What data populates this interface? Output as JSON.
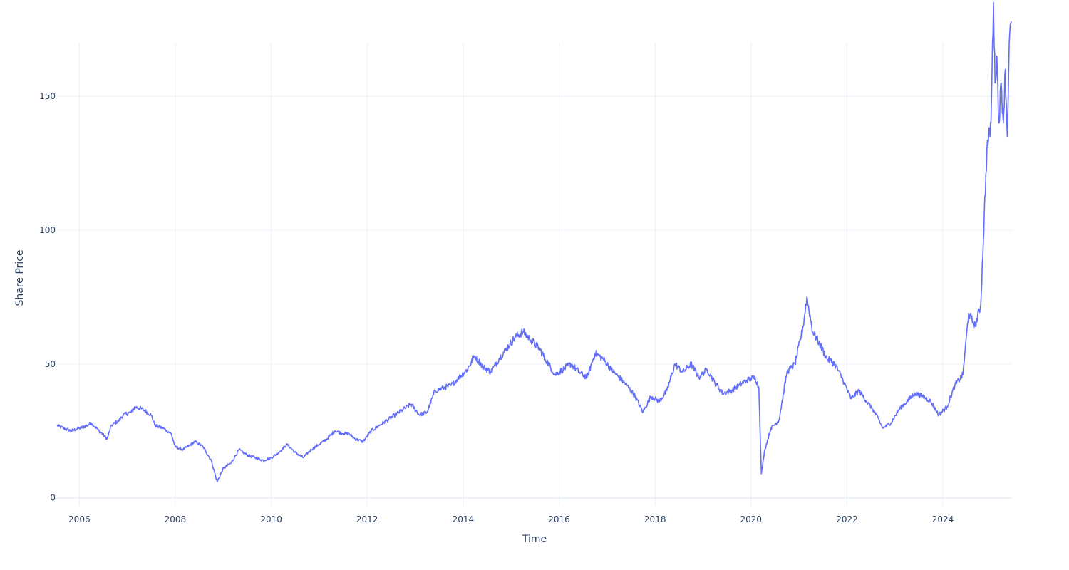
{
  "chart_data": {
    "type": "line",
    "xlabel": "Time",
    "ylabel": "Share Price",
    "xlim": [
      "2005-07-15",
      "2025-06-10"
    ],
    "ylim": [
      -3,
      170
    ],
    "x_ticks": [
      "2006",
      "2008",
      "2010",
      "2012",
      "2014",
      "2016",
      "2018",
      "2020",
      "2022",
      "2024"
    ],
    "y_ticks": [
      0,
      50,
      100,
      150
    ],
    "grid": true,
    "legend": "none",
    "line_color": "#636efa",
    "series": [
      {
        "x": [
          "2005-07-15",
          "2005-09-01",
          "2005-11-01",
          "2006-01-01",
          "2006-03-01",
          "2006-04-01",
          "2006-06-01",
          "2006-08-01",
          "2006-09-01",
          "2006-11-01",
          "2006-12-01",
          "2007-02-01",
          "2007-03-01",
          "2007-05-01",
          "2007-07-01",
          "2007-08-01",
          "2007-10-01",
          "2007-12-01",
          "2008-01-01",
          "2008-03-01",
          "2008-06-01",
          "2008-08-01",
          "2008-10-01",
          "2008-11-15",
          "2009-01-01",
          "2009-03-01",
          "2009-05-01",
          "2009-07-01",
          "2009-09-01",
          "2009-11-01",
          "2010-01-01",
          "2010-03-01",
          "2010-05-01",
          "2010-07-01",
          "2010-09-01",
          "2010-11-01",
          "2011-01-01",
          "2011-03-01",
          "2011-05-01",
          "2011-07-01",
          "2011-08-15",
          "2011-10-01",
          "2011-12-01",
          "2012-02-01",
          "2012-04-01",
          "2012-06-01",
          "2012-08-01",
          "2012-10-01",
          "2012-12-01",
          "2013-02-01",
          "2013-04-01",
          "2013-06-01",
          "2013-08-01",
          "2013-10-01",
          "2013-12-01",
          "2014-02-01",
          "2014-04-01",
          "2014-06-01",
          "2014-08-01",
          "2014-10-01",
          "2014-12-01",
          "2015-02-01",
          "2015-04-01",
          "2015-06-01",
          "2015-08-01",
          "2015-10-01",
          "2015-12-01",
          "2016-02-01",
          "2016-04-01",
          "2016-06-01",
          "2016-08-01",
          "2016-10-01",
          "2016-12-01",
          "2017-02-01",
          "2017-04-01",
          "2017-06-01",
          "2017-08-01",
          "2017-10-01",
          "2017-12-01",
          "2018-02-01",
          "2018-04-01",
          "2018-06-01",
          "2018-08-01",
          "2018-10-01",
          "2018-12-01",
          "2019-02-01",
          "2019-04-01",
          "2019-06-01",
          "2019-08-01",
          "2019-10-01",
          "2019-12-01",
          "2020-02-01",
          "2020-03-01",
          "2020-03-20",
          "2020-04-15",
          "2020-06-01",
          "2020-08-01",
          "2020-10-01",
          "2020-12-01",
          "2021-02-01",
          "2021-03-01",
          "2021-04-15",
          "2021-06-01",
          "2021-08-01",
          "2021-10-01",
          "2021-12-01",
          "2022-02-01",
          "2022-04-01",
          "2022-06-01",
          "2022-08-01",
          "2022-10-01",
          "2022-12-01",
          "2023-02-01",
          "2023-04-01",
          "2023-06-01",
          "2023-08-01",
          "2023-10-01",
          "2023-12-01",
          "2024-02-01",
          "2024-04-01",
          "2024-06-01",
          "2024-07-15",
          "2024-09-01",
          "2024-10-15",
          "2024-12-01",
          "2025-01-01",
          "2025-01-20",
          "2025-02-01",
          "2025-02-15",
          "2025-03-01",
          "2025-03-20",
          "2025-04-05",
          "2025-04-20",
          "2025-05-05",
          "2025-05-20",
          "2025-06-05"
        ],
        "y": [
          27,
          26,
          25,
          26,
          27,
          28,
          25,
          22,
          27,
          29,
          31,
          32,
          34,
          33,
          31,
          27,
          26,
          24,
          19,
          18,
          21,
          19,
          14,
          6,
          11,
          13,
          18,
          16,
          15,
          14,
          15,
          17,
          20,
          17,
          15,
          18,
          20,
          22,
          25,
          24,
          24,
          22,
          21,
          25,
          27,
          29,
          31,
          33,
          35,
          31,
          32,
          40,
          41,
          42,
          45,
          48,
          53,
          49,
          47,
          52,
          56,
          60,
          62,
          59,
          56,
          51,
          46,
          48,
          50,
          47,
          45,
          54,
          52,
          48,
          45,
          42,
          38,
          32,
          38,
          36,
          40,
          50,
          47,
          50,
          45,
          48,
          43,
          39,
          40,
          42,
          44,
          45,
          41,
          9,
          18,
          26,
          29,
          47,
          50,
          64,
          75,
          62,
          58,
          52,
          50,
          44,
          37,
          40,
          36,
          32,
          26,
          28,
          33,
          36,
          39,
          38,
          36,
          31,
          34,
          42,
          46,
          69,
          64,
          72,
          130,
          140,
          185,
          155,
          165,
          140,
          155,
          140,
          160,
          135,
          170,
          178
        ]
      }
    ]
  }
}
